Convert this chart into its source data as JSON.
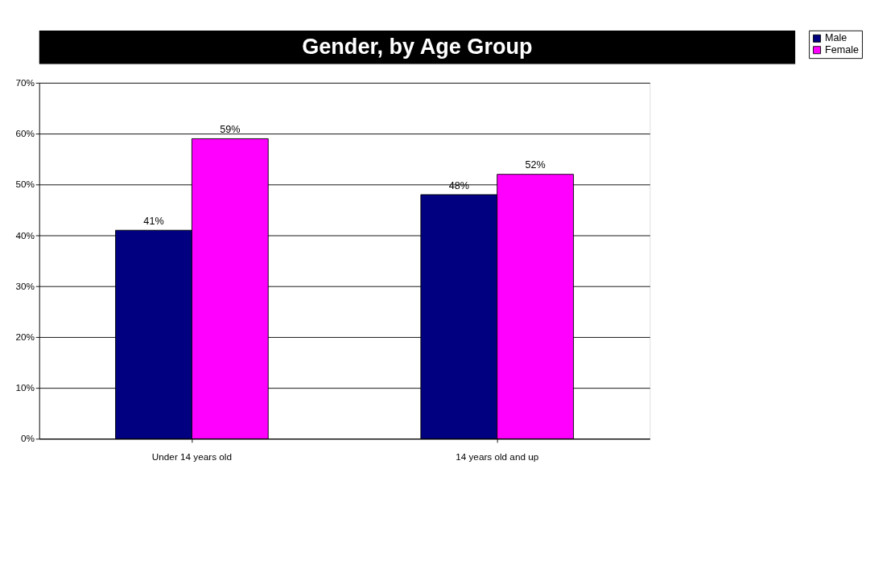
{
  "chart_data": {
    "type": "bar",
    "title": "Gender, by Age Group",
    "categories": [
      "Under 14 years old",
      "14 years old and up"
    ],
    "series": [
      {
        "name": "Male",
        "color": "#000080",
        "values": [
          41,
          48
        ],
        "value_labels": [
          "41%",
          "48%"
        ]
      },
      {
        "name": "Female",
        "color": "#ff00ff",
        "values": [
          59,
          52
        ],
        "value_labels": [
          "59%",
          "52%"
        ]
      }
    ],
    "ylim": [
      0,
      70
    ],
    "yticks": [
      {
        "value": 0,
        "label": "0%"
      },
      {
        "value": 10,
        "label": "10%"
      },
      {
        "value": 20,
        "label": "20%"
      },
      {
        "value": 30,
        "label": "30%"
      },
      {
        "value": 40,
        "label": "40%"
      },
      {
        "value": 50,
        "label": "50%"
      },
      {
        "value": 60,
        "label": "60%"
      },
      {
        "value": 70,
        "label": "70%"
      }
    ],
    "grid": "y",
    "legend": "right"
  }
}
